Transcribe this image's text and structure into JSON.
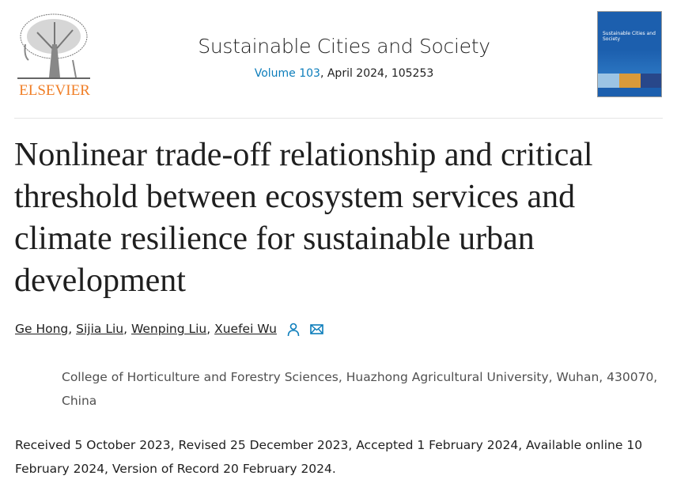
{
  "publisher": {
    "logo_text": "ELSEVIER",
    "brand_color": "#f07e26"
  },
  "journal": {
    "name": "Sustainable Cities and Society",
    "volume_link": "Volume 103",
    "issue_rest": ", April 2024, 105253",
    "cover_text": "Sustainable Cities and Society"
  },
  "article": {
    "title": "Nonlinear trade-off relationship and critical threshold between ecosystem services and climate resilience for sustainable urban development",
    "authors": [
      "Ge Hong",
      "Sijia Liu",
      "Wenping Liu",
      "Xuefei Wu"
    ],
    "separator": ", ",
    "author_icons": [
      "person-icon",
      "envelope-icon"
    ],
    "affiliation": "College of Horticulture and Forestry Sciences, Huazhong Agricultural University, Wuhan, 430070, China",
    "dates": "Received 5 October 2023, Revised 25 December 2023, Accepted 1 February 2024, Available online 10 February 2024, Version of Record 20 February 2024."
  },
  "colors": {
    "link": "#0c7dbb",
    "text": "#1f1f1f",
    "muted": "#505050"
  }
}
